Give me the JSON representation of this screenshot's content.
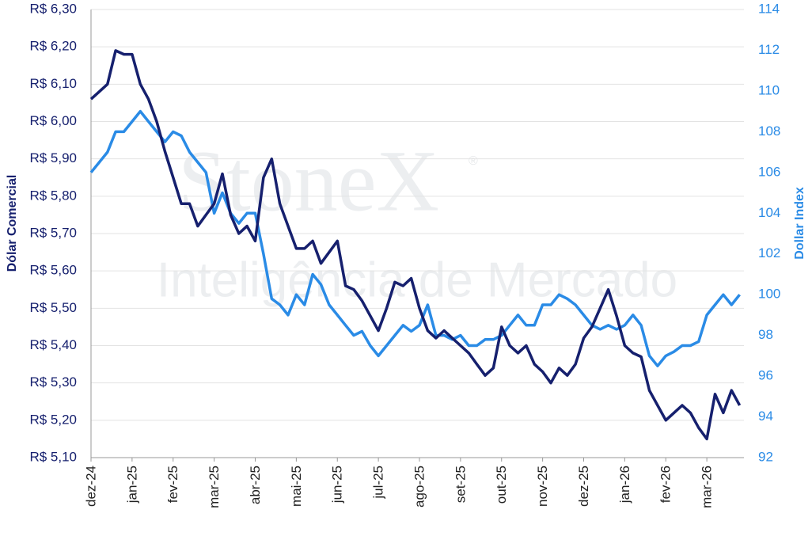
{
  "chart_data": {
    "type": "line",
    "watermark_brand": "StoneX",
    "watermark_mark": "®",
    "watermark_text": "Inteligência de Mercado",
    "ylabel": "Dólar Comercial",
    "y2label": "Dollar Index",
    "categories": [
      "dez-24",
      null,
      null,
      null,
      null,
      "jan-25",
      null,
      null,
      null,
      null,
      "fev-25",
      null,
      null,
      null,
      null,
      "mar-25",
      null,
      null,
      null,
      null,
      "abr-25",
      null,
      null,
      null,
      null,
      "mai-25",
      null,
      null,
      null,
      null,
      "jun-25",
      null,
      null,
      null,
      null,
      "jul-25",
      null,
      null,
      null,
      null,
      "ago-25",
      null,
      null,
      null,
      null,
      "set-25",
      null,
      null,
      null,
      null,
      "out-25",
      null,
      null,
      null,
      null,
      "nov-25",
      null,
      null,
      null,
      null,
      "dez-25",
      null,
      null,
      null,
      null,
      "jan-26",
      null,
      null,
      null,
      null,
      "fev-26",
      null,
      null,
      null,
      null,
      "mar-26",
      null,
      null,
      null,
      null
    ],
    "series": [
      {
        "name": "Dólar Comercial",
        "color": "#16206e",
        "axis": "y",
        "values": [
          6.06,
          6.08,
          6.1,
          6.19,
          6.18,
          6.18,
          6.1,
          6.06,
          6.0,
          5.92,
          5.85,
          5.78,
          5.78,
          5.72,
          5.75,
          5.78,
          5.86,
          5.75,
          5.7,
          5.72,
          5.68,
          5.85,
          5.9,
          5.78,
          5.72,
          5.66,
          5.66,
          5.68,
          5.62,
          5.65,
          5.68,
          5.56,
          5.55,
          5.52,
          5.48,
          5.44,
          5.5,
          5.57,
          5.56,
          5.58,
          5.5,
          5.44,
          5.42,
          5.44,
          5.42,
          5.4,
          5.38,
          5.35,
          5.32,
          5.34,
          5.45,
          5.4,
          5.38,
          5.4,
          5.35,
          5.33,
          5.3,
          5.34,
          5.32,
          5.35,
          5.42,
          5.45,
          5.5,
          5.55,
          5.48,
          5.4,
          5.38,
          5.37,
          5.28,
          5.24,
          5.2,
          5.22,
          5.24,
          5.22,
          5.18,
          5.15,
          5.27,
          5.22,
          5.28,
          5.24
        ]
      },
      {
        "name": "Dollar Index",
        "color": "#2a8be6",
        "axis": "y2",
        "values": [
          106,
          106.5,
          107,
          108,
          108,
          108.5,
          109,
          108.5,
          108,
          107.5,
          108,
          107.8,
          107,
          106.5,
          106,
          104,
          105,
          104,
          103.5,
          104,
          104,
          102,
          99.8,
          99.5,
          99,
          100,
          99.5,
          101,
          100.5,
          99.5,
          99,
          98.5,
          98,
          98.2,
          97.5,
          97,
          97.5,
          98,
          98.5,
          98.2,
          98.5,
          99.5,
          98,
          98,
          97.8,
          98,
          97.5,
          97.5,
          97.8,
          97.8,
          98,
          98.5,
          99,
          98.5,
          98.5,
          99.5,
          99.5,
          100,
          99.8,
          99.5,
          99,
          98.5,
          98.3,
          98.5,
          98.3,
          98.5,
          99,
          98.5,
          97,
          96.5,
          97,
          97.2,
          97.5,
          97.5,
          97.7,
          99,
          99.5,
          100,
          99.5,
          100
        ]
      }
    ],
    "ylim": [
      5.1,
      6.3
    ],
    "yticks": [
      {
        "value": 5.1,
        "label": "R$ 5,10"
      },
      {
        "value": 5.2,
        "label": "R$ 5,20"
      },
      {
        "value": 5.3,
        "label": "R$ 5,30"
      },
      {
        "value": 5.4,
        "label": "R$ 5,40"
      },
      {
        "value": 5.5,
        "label": "R$ 5,50"
      },
      {
        "value": 5.6,
        "label": "R$ 5,60"
      },
      {
        "value": 5.7,
        "label": "R$ 5,70"
      },
      {
        "value": 5.8,
        "label": "R$ 5,80"
      },
      {
        "value": 5.9,
        "label": "R$ 5,90"
      },
      {
        "value": 6.0,
        "label": "R$ 6,00"
      },
      {
        "value": 6.1,
        "label": "R$ 6,10"
      },
      {
        "value": 6.2,
        "label": "R$ 6,20"
      },
      {
        "value": 6.3,
        "label": "R$ 6,30"
      }
    ],
    "y2lim": [
      92,
      114
    ],
    "y2ticks": [
      92,
      94,
      96,
      98,
      100,
      102,
      104,
      106,
      108,
      110,
      112,
      114
    ],
    "grid": true
  }
}
